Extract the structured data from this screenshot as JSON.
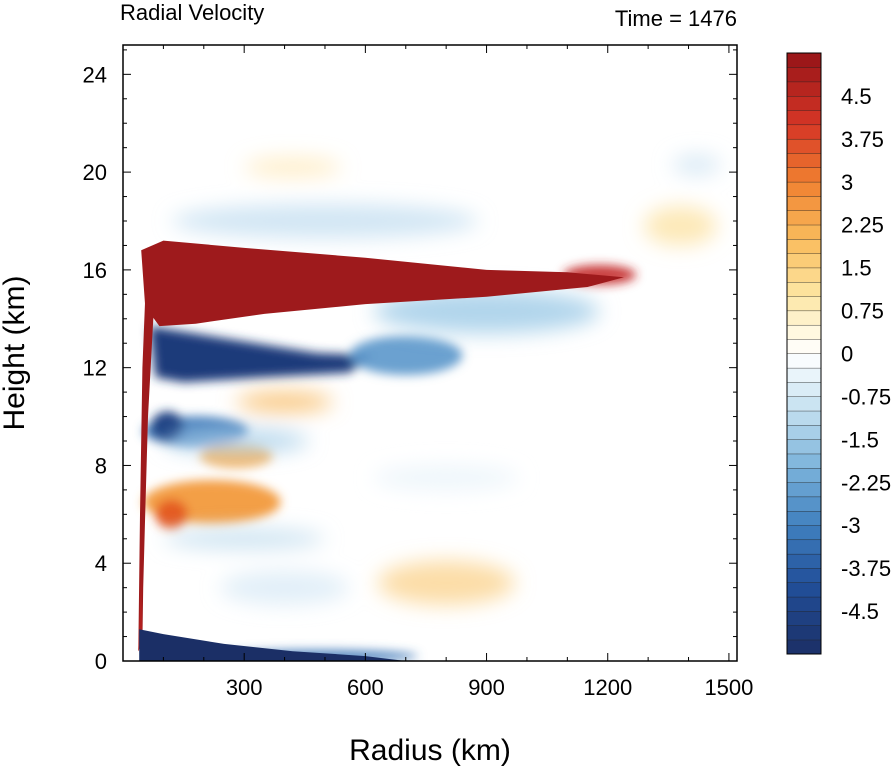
{
  "chart_data": {
    "type": "heatmap",
    "title": "Radial Velocity",
    "time_label": "Time = 1476",
    "xlabel": "Radius (km)",
    "ylabel": "Height (km)",
    "xlim": [
      0,
      1520
    ],
    "ylim": [
      0,
      25.2
    ],
    "x_ticks": [
      300,
      600,
      900,
      1200,
      1500
    ],
    "x_tick_labels": [
      "300",
      "600",
      "900",
      "1200",
      "1500"
    ],
    "y_ticks": [
      0,
      4,
      8,
      12,
      16,
      20,
      24
    ],
    "y_tick_labels": [
      "0",
      "4",
      "8",
      "12",
      "16",
      "20",
      "24"
    ],
    "colorbar": {
      "levels": [
        -5.25,
        -5.0,
        -4.75,
        -4.5,
        -4.25,
        -4.0,
        -3.75,
        -3.5,
        -3.25,
        -3.0,
        -2.75,
        -2.5,
        -2.25,
        -2.0,
        -1.75,
        -1.5,
        -1.25,
        -1.0,
        -0.75,
        -0.5,
        -0.25,
        0,
        0.25,
        0.5,
        0.75,
        1.0,
        1.25,
        1.5,
        1.75,
        2.0,
        2.25,
        2.5,
        2.75,
        3.0,
        3.25,
        3.5,
        3.75,
        4.0,
        4.25,
        4.5,
        4.75,
        5.0,
        5.25
      ],
      "tick_values": [
        -4.5,
        -3.75,
        -3,
        -2.25,
        -1.5,
        -0.75,
        0,
        0.75,
        1.5,
        2.25,
        3,
        3.75,
        4.5
      ],
      "tick_labels": [
        "-4.5",
        "-3.75",
        "-3",
        "-2.25",
        "-1.5",
        "-0.75",
        "0",
        "0.75",
        "1.5",
        "2.25",
        "3",
        "3.75",
        "4.5"
      ],
      "colors": {
        "strong_negative": "#1b2f66",
        "negative": "#4a86c0",
        "weak_negative": "#cfe5f3",
        "neutral": "#ffffff",
        "weak_positive": "#fdeab0",
        "positive": "#f39a3c",
        "strong_positive": "#9e1a1c"
      }
    },
    "features": [
      {
        "name": "upper-level outflow",
        "sign": "positive",
        "radius_km": [
          40,
          1250
        ],
        "height_km": [
          14,
          17.5
        ]
      },
      {
        "name": "low-level inflow",
        "sign": "negative",
        "radius_km": [
          40,
          600
        ],
        "height_km": [
          0,
          1.3
        ]
      },
      {
        "name": "inner-core outflow column",
        "sign": "positive",
        "radius_km": [
          30,
          90
        ],
        "height_km": [
          0.4,
          17
        ]
      },
      {
        "name": "upper inflow below outflow",
        "sign": "negative",
        "radius_km": [
          60,
          600
        ],
        "height_km": [
          11.5,
          13.8
        ]
      },
      {
        "name": "mid-level outflow band",
        "sign": "positive",
        "radius_km": [
          60,
          400
        ],
        "height_km": [
          5.5,
          8.5
        ]
      }
    ]
  }
}
